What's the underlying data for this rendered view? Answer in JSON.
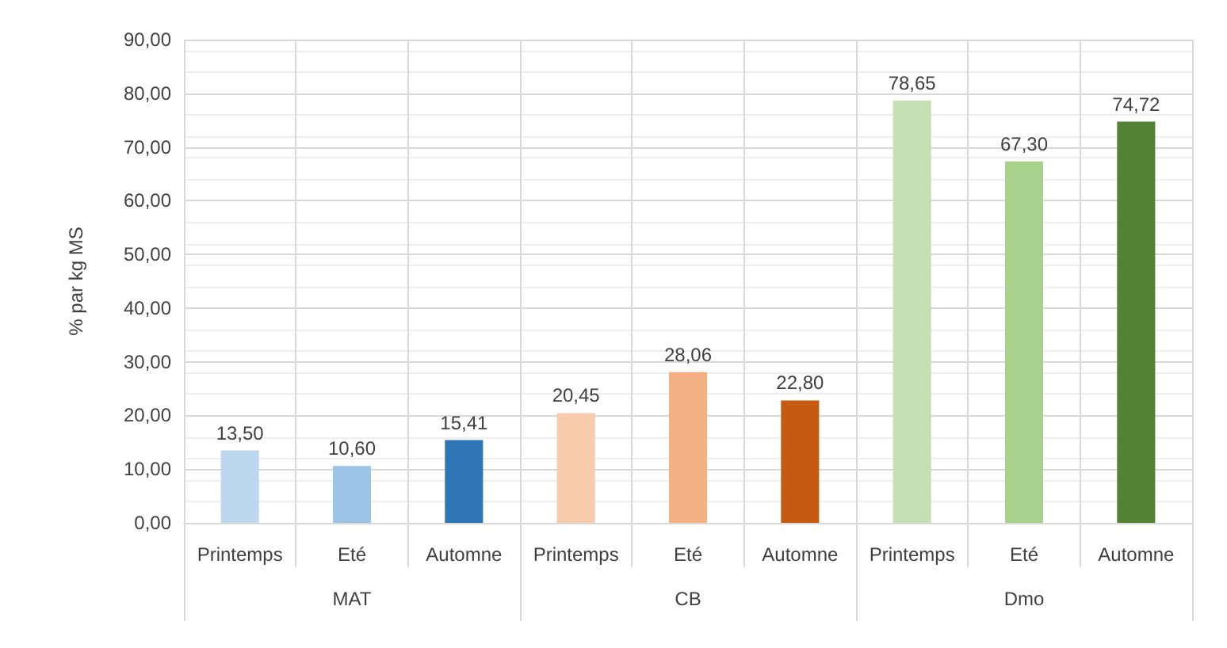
{
  "chart_data": {
    "type": "bar",
    "ylabel": "% par kg MS",
    "categories": [
      "Printemps",
      "Eté",
      "Automne",
      "Printemps",
      "Eté",
      "Automne",
      "Printemps",
      "Eté",
      "Automne"
    ],
    "values": [
      13.5,
      10.6,
      15.41,
      20.45,
      28.06,
      22.8,
      78.65,
      67.3,
      74.72
    ],
    "value_labels": [
      "13,50",
      "10,60",
      "15,41",
      "20,45",
      "28,06",
      "22,80",
      "78,65",
      "67,30",
      "74,72"
    ],
    "colors": [
      "#bdd7ee",
      "#9dc3e6",
      "#2e75b6",
      "#f8cbad",
      "#f4b183",
      "#c55a11",
      "#c5e0b4",
      "#a9d18e",
      "#548235"
    ],
    "annotations": [
      "MAT",
      "CB",
      "Dmo"
    ],
    "ylim": [
      0,
      90
    ],
    "yticks": [
      {
        "value": 0,
        "label": "0,00"
      },
      {
        "value": 10,
        "label": "10,00"
      },
      {
        "value": 20,
        "label": "20,00"
      },
      {
        "value": 30,
        "label": "30,00"
      },
      {
        "value": 40,
        "label": "40,00"
      },
      {
        "value": 50,
        "label": "50,00"
      },
      {
        "value": 60,
        "label": "60,00"
      },
      {
        "value": 70,
        "label": "70,00"
      },
      {
        "value": 80,
        "label": "80,00"
      },
      {
        "value": 90,
        "label": "90,00"
      }
    ],
    "grid": true
  }
}
